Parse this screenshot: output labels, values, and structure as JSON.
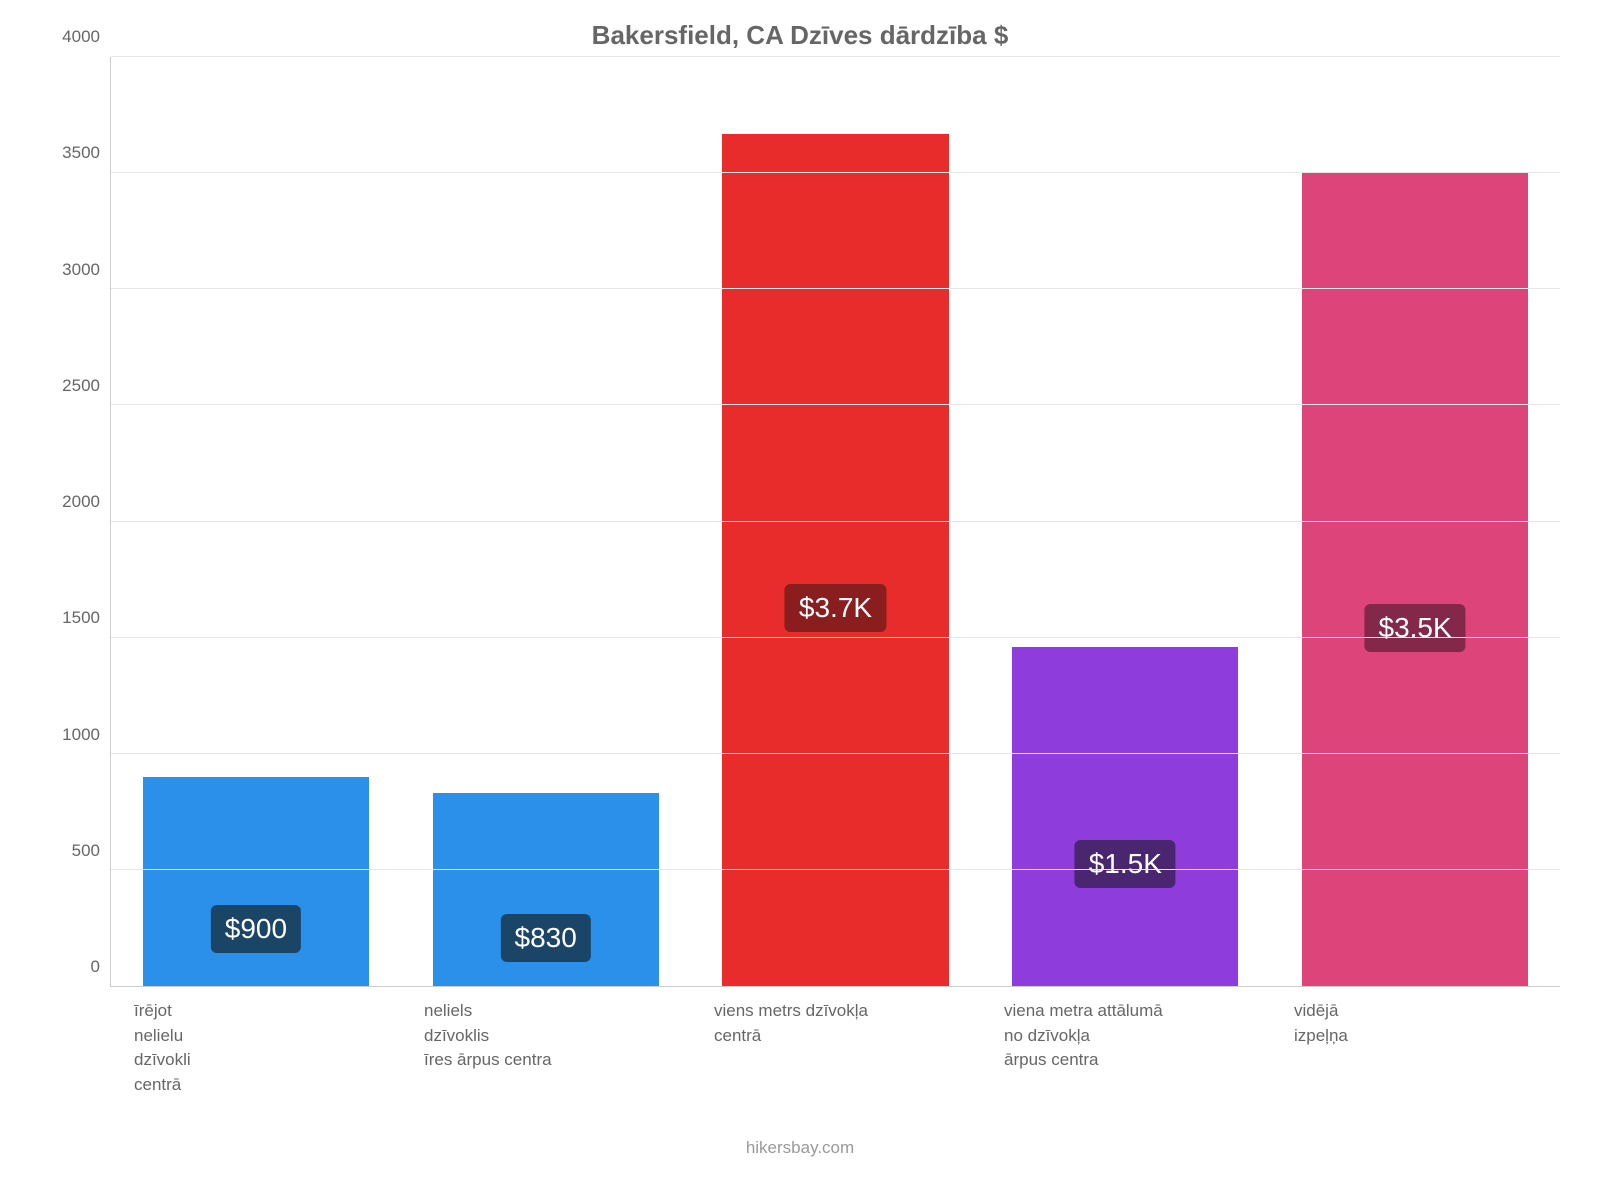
{
  "chart": {
    "type": "bar",
    "title": "Bakersfield, CA Dzīves dārdzība $",
    "title_fontsize": 26,
    "title_color": "#666666",
    "background_color": "#ffffff",
    "grid_color": "#e6e6e6",
    "axis_line_color": "#cccccc",
    "tick_label_color": "#666666",
    "tick_fontsize": 17,
    "bar_width": 0.78,
    "y": {
      "min": 0,
      "max": 4000,
      "step": 500
    },
    "bars": [
      {
        "category": "īrējot\nnelielu\ndzīvokli\ncentrā",
        "value": 900,
        "display": "$900",
        "fill": "#2b90e9",
        "label_bg": "#1a4566"
      },
      {
        "category": "neliels\ndzīvoklis\nīres ārpus centra",
        "value": 830,
        "display": "$830",
        "fill": "#2b90e9",
        "label_bg": "#1a4566"
      },
      {
        "category": "viens metrs dzīvokļa\ncentrā",
        "value": 3670,
        "display": "$3.7K",
        "fill": "#e82c2c",
        "label_bg": "#8a1e1e"
      },
      {
        "category": "viena metra attālumā\nno dzīvokļa\nārpus centra",
        "value": 1460,
        "display": "$1.5K",
        "fill": "#8e3ddc",
        "label_bg": "#4a2671"
      },
      {
        "category": "vidējā\nizpeļņa",
        "value": 3500,
        "display": "$3.5K",
        "fill": "#dd447a",
        "label_bg": "#832848"
      }
    ],
    "value_label_fontsize": 28,
    "value_label_color": "#ffffff",
    "value_label_radius": 6,
    "footer": "hikersbay.com",
    "footer_color": "#999999",
    "footer_fontsize": 17
  }
}
